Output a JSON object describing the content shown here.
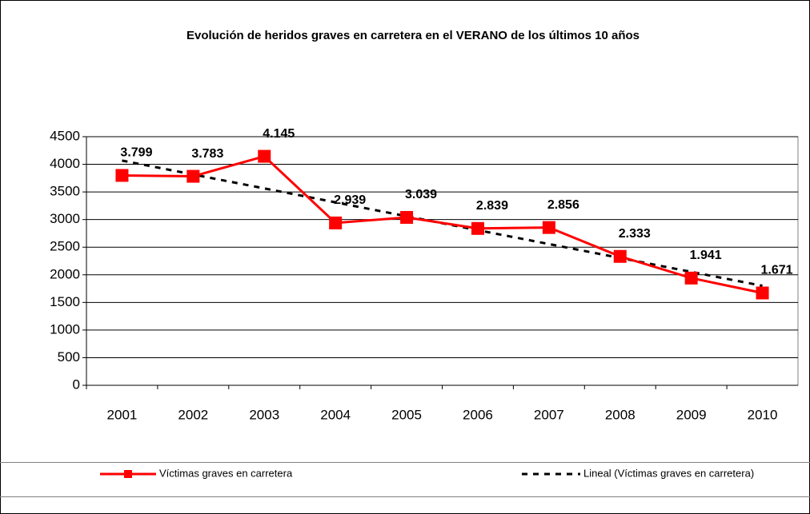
{
  "chart_data": {
    "type": "line",
    "title": "Evolución de heridos graves en carretera en el VERANO de los últimos 10 años",
    "categories": [
      "2001",
      "2002",
      "2003",
      "2004",
      "2005",
      "2006",
      "2007",
      "2008",
      "2009",
      "2010"
    ],
    "series": [
      {
        "name": "Víctimas graves en carretera",
        "color": "#ff0000",
        "values": [
          3799,
          3783,
          4145,
          2939,
          3039,
          2839,
          2856,
          2333,
          1941,
          1671
        ],
        "value_labels": [
          "3.799",
          "3.783",
          "4.145",
          "2.939",
          "3.039",
          "2.839",
          "2.856",
          "2.333",
          "1.941",
          "1.671"
        ]
      },
      {
        "name": "Lineal (Víctimas graves en carretera)",
        "color": "#000000",
        "dashed": true,
        "values": [
          4068,
          3816,
          3564,
          3312,
          3060,
          2808,
          2557,
          2305,
          2053,
          1801
        ]
      }
    ],
    "ylim": [
      0,
      4500
    ],
    "yticks": [
      0,
      500,
      1000,
      1500,
      2000,
      2500,
      3000,
      3500,
      4000,
      4500
    ],
    "grid": true,
    "legend": "bottom"
  }
}
